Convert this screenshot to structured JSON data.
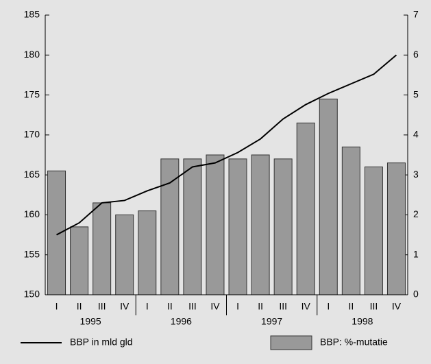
{
  "chart_data": {
    "type": "bar-line",
    "categories": [
      "I",
      "II",
      "III",
      "IV",
      "I",
      "II",
      "III",
      "IV",
      "I",
      "II",
      "III",
      "IV",
      "I",
      "II",
      "III",
      "IV"
    ],
    "x_groups": [
      "1995",
      "1996",
      "1997",
      "1998"
    ],
    "series": [
      {
        "name": "BBP in mld gld",
        "type": "line",
        "axis": "y",
        "color": "#000000",
        "values": [
          157.5,
          159,
          161.5,
          161.8,
          163,
          164,
          166,
          166.5,
          167.8,
          169.5,
          172,
          173.8,
          175.2,
          176.4,
          177.6,
          180
        ]
      },
      {
        "name": "BBP: %-mutatie",
        "type": "bar",
        "axis": "y2",
        "color": "#999999",
        "values": [
          3.1,
          1.7,
          2.3,
          2.0,
          2.1,
          3.4,
          3.4,
          3.5,
          3.4,
          3.5,
          3.4,
          4.3,
          4.9,
          3.7,
          3.2,
          3.3
        ]
      }
    ],
    "ylim": [
      150,
      185
    ],
    "yticks": [
      150,
      155,
      160,
      165,
      170,
      175,
      180,
      185
    ],
    "y2lim": [
      0,
      7
    ],
    "y2ticks": [
      0,
      1,
      2,
      3,
      4,
      5,
      6,
      7
    ],
    "grid": false,
    "legend": "bottom"
  }
}
